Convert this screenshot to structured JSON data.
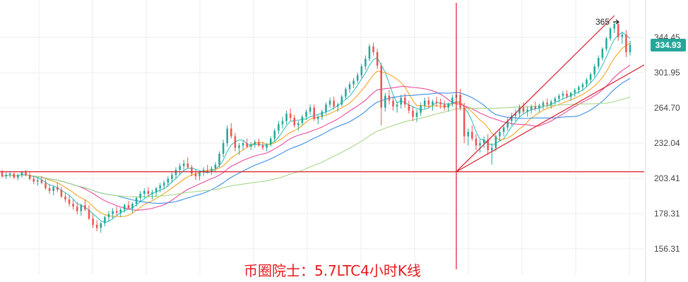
{
  "chart_data": {
    "type": "candlestick",
    "title": "币圈院士：5.7LTC4小时K线",
    "y_ticks": [
      "344.45",
      "301.95",
      "264.70",
      "232.04",
      "203.41",
      "178.31",
      "156.31"
    ],
    "y_tick_values": [
      344.45,
      301.95,
      264.7,
      232.04,
      203.41,
      178.31,
      156.31
    ],
    "last_price": "334.93",
    "high_marker": "365",
    "grid": true,
    "colors": {
      "up": "#26a69a",
      "down": "#ef5350",
      "annotation": "#d91b2a",
      "ma": [
        "#36c3c1",
        "#f5a623",
        "#e84b9c",
        "#3c8ee8",
        "#a8d88a"
      ]
    },
    "ma_periods": [
      5,
      10,
      20,
      30,
      60
    ],
    "horizontal_line": 208.5,
    "candles": [
      [
        208,
        210,
        204,
        205
      ],
      [
        205,
        208,
        203,
        206
      ],
      [
        206,
        209,
        204,
        207
      ],
      [
        207,
        208,
        203,
        204
      ],
      [
        204,
        207,
        202,
        206
      ],
      [
        206,
        209,
        204,
        208
      ],
      [
        208,
        210,
        205,
        206
      ],
      [
        206,
        208,
        202,
        203
      ],
      [
        203,
        205,
        199,
        201
      ],
      [
        201,
        204,
        198,
        202
      ],
      [
        202,
        205,
        199,
        200
      ],
      [
        200,
        203,
        195,
        196
      ],
      [
        196,
        199,
        192,
        194
      ],
      [
        194,
        198,
        191,
        197
      ],
      [
        197,
        200,
        193,
        195
      ],
      [
        195,
        197,
        189,
        190
      ],
      [
        190,
        193,
        186,
        188
      ],
      [
        188,
        191,
        183,
        185
      ],
      [
        185,
        188,
        181,
        183
      ],
      [
        183,
        186,
        178,
        180
      ],
      [
        180,
        185,
        177,
        184
      ],
      [
        184,
        188,
        180,
        181
      ],
      [
        181,
        184,
        174,
        175
      ],
      [
        175,
        178,
        169,
        171
      ],
      [
        171,
        174,
        167,
        169
      ],
      [
        169,
        173,
        166,
        172
      ],
      [
        172,
        177,
        170,
        176
      ],
      [
        176,
        180,
        173,
        178
      ],
      [
        178,
        182,
        175,
        180
      ],
      [
        180,
        183,
        177,
        179
      ],
      [
        179,
        182,
        176,
        181
      ],
      [
        181,
        185,
        179,
        184
      ],
      [
        184,
        187,
        181,
        182
      ],
      [
        182,
        186,
        179,
        185
      ],
      [
        185,
        190,
        183,
        189
      ],
      [
        189,
        194,
        186,
        192
      ],
      [
        192,
        196,
        189,
        194
      ],
      [
        194,
        197,
        190,
        192
      ],
      [
        192,
        195,
        188,
        193
      ],
      [
        193,
        197,
        190,
        196
      ],
      [
        196,
        200,
        193,
        198
      ],
      [
        198,
        202,
        195,
        200
      ],
      [
        200,
        205,
        197,
        203
      ],
      [
        203,
        208,
        200,
        206
      ],
      [
        206,
        212,
        203,
        210
      ],
      [
        210,
        215,
        206,
        213
      ],
      [
        213,
        218,
        209,
        215
      ],
      [
        215,
        220,
        211,
        212
      ],
      [
        212,
        214,
        205,
        207
      ],
      [
        207,
        210,
        202,
        205
      ],
      [
        205,
        209,
        202,
        208
      ],
      [
        208,
        212,
        205,
        210
      ],
      [
        210,
        214,
        207,
        209
      ],
      [
        209,
        213,
        206,
        211
      ],
      [
        211,
        216,
        208,
        214
      ],
      [
        214,
        225,
        212,
        223
      ],
      [
        223,
        235,
        220,
        232
      ],
      [
        232,
        248,
        229,
        245
      ],
      [
        245,
        250,
        236,
        238
      ],
      [
        238,
        241,
        225,
        228
      ],
      [
        228,
        232,
        222,
        230
      ],
      [
        230,
        234,
        226,
        232
      ],
      [
        232,
        236,
        228,
        229
      ],
      [
        229,
        233,
        226,
        231
      ],
      [
        231,
        235,
        228,
        233
      ],
      [
        233,
        236,
        229,
        230
      ],
      [
        230,
        233,
        226,
        228
      ],
      [
        228,
        232,
        225,
        231
      ],
      [
        231,
        238,
        229,
        236
      ],
      [
        236,
        245,
        233,
        243
      ],
      [
        243,
        252,
        240,
        249
      ],
      [
        249,
        256,
        245,
        252
      ],
      [
        252,
        262,
        249,
        259
      ],
      [
        259,
        264,
        252,
        255
      ],
      [
        255,
        258,
        246,
        248
      ],
      [
        248,
        252,
        243,
        250
      ],
      [
        250,
        258,
        248,
        256
      ],
      [
        256,
        263,
        253,
        261
      ],
      [
        261,
        268,
        258,
        265
      ],
      [
        265,
        268,
        252,
        254
      ],
      [
        254,
        258,
        249,
        256
      ],
      [
        256,
        263,
        253,
        261
      ],
      [
        261,
        270,
        258,
        268
      ],
      [
        268,
        275,
        265,
        272
      ],
      [
        272,
        276,
        263,
        266
      ],
      [
        266,
        270,
        261,
        268
      ],
      [
        268,
        278,
        266,
        276
      ],
      [
        276,
        286,
        273,
        284
      ],
      [
        284,
        292,
        280,
        289
      ],
      [
        289,
        296,
        285,
        293
      ],
      [
        293,
        302,
        290,
        299
      ],
      [
        299,
        312,
        296,
        309
      ],
      [
        309,
        322,
        305,
        318
      ],
      [
        318,
        336,
        315,
        333
      ],
      [
        333,
        338,
        322,
        326
      ],
      [
        326,
        330,
        306,
        310
      ],
      [
        310,
        313,
        248,
        265
      ],
      [
        265,
        280,
        261,
        277
      ],
      [
        277,
        283,
        268,
        272
      ],
      [
        272,
        276,
        262,
        266
      ],
      [
        266,
        271,
        260,
        268
      ],
      [
        268,
        278,
        264,
        275
      ],
      [
        275,
        279,
        265,
        268
      ],
      [
        268,
        272,
        259,
        262
      ],
      [
        262,
        266,
        252,
        256
      ],
      [
        256,
        263,
        251,
        260
      ],
      [
        260,
        270,
        257,
        267
      ],
      [
        267,
        275,
        264,
        272
      ],
      [
        272,
        276,
        265,
        268
      ],
      [
        268,
        273,
        262,
        271
      ],
      [
        271,
        276,
        266,
        270
      ],
      [
        270,
        274,
        264,
        268
      ],
      [
        268,
        272,
        262,
        265
      ],
      [
        265,
        270,
        261,
        269
      ],
      [
        269,
        278,
        266,
        275
      ],
      [
        275,
        282,
        271,
        278
      ],
      [
        278,
        284,
        262,
        265
      ],
      [
        265,
        270,
        232,
        238
      ],
      [
        238,
        245,
        230,
        242
      ],
      [
        242,
        248,
        234,
        236
      ],
      [
        236,
        240,
        226,
        230
      ],
      [
        230,
        235,
        224,
        232
      ],
      [
        232,
        238,
        228,
        235
      ],
      [
        235,
        240,
        222,
        226
      ],
      [
        226,
        232,
        214,
        228
      ],
      [
        228,
        240,
        225,
        238
      ],
      [
        238,
        245,
        234,
        242
      ],
      [
        242,
        248,
        238,
        246
      ],
      [
        246,
        255,
        243,
        252
      ],
      [
        252,
        260,
        248,
        257
      ],
      [
        257,
        263,
        252,
        259
      ],
      [
        259,
        268,
        256,
        265
      ],
      [
        265,
        270,
        259,
        261
      ],
      [
        261,
        266,
        256,
        263
      ],
      [
        263,
        268,
        259,
        266
      ],
      [
        266,
        271,
        262,
        264
      ],
      [
        264,
        269,
        260,
        267
      ],
      [
        267,
        272,
        263,
        270
      ],
      [
        270,
        274,
        265,
        268
      ],
      [
        268,
        273,
        264,
        271
      ],
      [
        271,
        276,
        268,
        274
      ],
      [
        274,
        279,
        270,
        277
      ],
      [
        277,
        282,
        273,
        279
      ],
      [
        279,
        283,
        274,
        276
      ],
      [
        276,
        281,
        272,
        280
      ],
      [
        280,
        285,
        276,
        283
      ],
      [
        283,
        288,
        279,
        286
      ],
      [
        286,
        291,
        282,
        289
      ],
      [
        289,
        296,
        286,
        294
      ],
      [
        294,
        302,
        291,
        300
      ],
      [
        300,
        312,
        297,
        309
      ],
      [
        309,
        322,
        306,
        319
      ],
      [
        319,
        332,
        316,
        330
      ],
      [
        330,
        345,
        327,
        343
      ],
      [
        343,
        358,
        340,
        356
      ],
      [
        356,
        365,
        350,
        362
      ],
      [
        362,
        364,
        340,
        345
      ],
      [
        345,
        352,
        336,
        348
      ],
      [
        348,
        354,
        320,
        326
      ],
      [
        326,
        340,
        322,
        335
      ]
    ]
  }
}
